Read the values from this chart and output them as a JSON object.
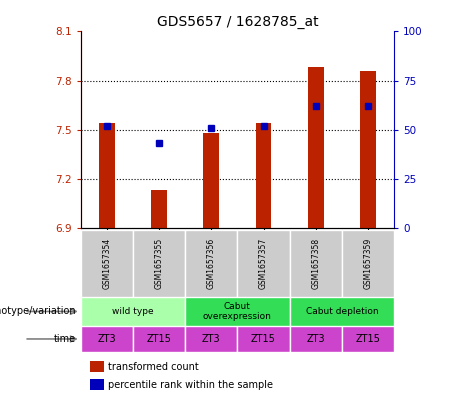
{
  "title": "GDS5657 / 1628785_at",
  "samples": [
    "GSM1657354",
    "GSM1657355",
    "GSM1657356",
    "GSM1657357",
    "GSM1657358",
    "GSM1657359"
  ],
  "transformed_counts": [
    7.54,
    7.13,
    7.48,
    7.54,
    7.88,
    7.86
  ],
  "percentile_ranks": [
    52,
    43,
    51,
    52,
    62,
    62
  ],
  "ylim_left": [
    6.9,
    8.1
  ],
  "ylim_right": [
    0,
    100
  ],
  "yticks_left": [
    6.9,
    7.2,
    7.5,
    7.8,
    8.1
  ],
  "yticks_right": [
    0,
    25,
    50,
    75,
    100
  ],
  "bar_color": "#bb2200",
  "percentile_color": "#0000bb",
  "bar_width": 0.3,
  "genotype_groups": [
    {
      "label": "wild type",
      "start": 0,
      "end": 2,
      "color": "#aaffaa"
    },
    {
      "label": "Cabut\noverexpression",
      "start": 2,
      "end": 4,
      "color": "#33dd55"
    },
    {
      "label": "Cabut depletion",
      "start": 4,
      "end": 6,
      "color": "#33dd55"
    }
  ],
  "time_labels": [
    "ZT3",
    "ZT15",
    "ZT3",
    "ZT15",
    "ZT3",
    "ZT15"
  ],
  "time_color": "#cc44cc",
  "sample_bg_color": "#cccccc",
  "label_genotype": "genotype/variation",
  "label_time": "time",
  "legend_bar_label": "transformed count",
  "legend_pct_label": "percentile rank within the sample"
}
